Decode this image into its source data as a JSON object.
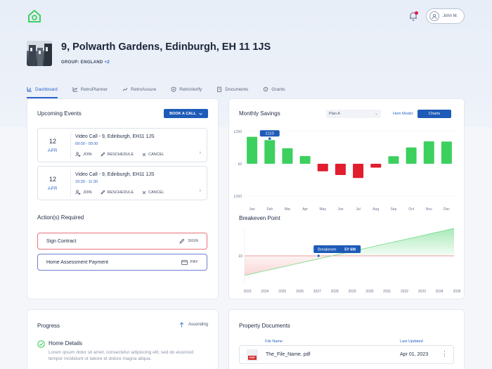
{
  "header": {
    "user_name": "John M.",
    "property_title": "9, Polwarth Gardens, Edinburgh, EH 11 1JS",
    "group_label": "GROUP: ENGLAND",
    "group_more": "+2"
  },
  "tabs": [
    {
      "label": "Dashboard",
      "icon": "chart-icon",
      "active": true
    },
    {
      "label": "RetroPlanner",
      "icon": "planner-icon"
    },
    {
      "label": "RetroAssure",
      "icon": "assure-icon"
    },
    {
      "label": "RetroVerify",
      "icon": "shield-icon"
    },
    {
      "label": "Documents",
      "icon": "document-icon"
    },
    {
      "label": "Grants",
      "icon": "grants-icon"
    }
  ],
  "events": {
    "title": "Upcoming Events",
    "book_button": "BOOK A CALL",
    "items": [
      {
        "day": "12",
        "month": "APR",
        "title": "Video Call - 9, Edinburgh, EH11 1JS",
        "time": "09:00 - 09:30",
        "join": "JOIN",
        "reschedule": "RESCHEDULE",
        "cancel": "CANCEL"
      },
      {
        "day": "12",
        "month": "APR",
        "title": "Video Call - 9, Edinburgh, EH11 1JS",
        "time": "10:30 - 11:30",
        "join": "JOIN",
        "reschedule": "RESCHEDULE",
        "cancel": "CANCEL"
      }
    ]
  },
  "actions": {
    "title": "Action(s) Required",
    "items": [
      {
        "label": "Sign Contract",
        "action": "SIGN",
        "color": "#e8727b"
      },
      {
        "label": "Home Assessment Payment",
        "action": "PAY",
        "color": "#6f7fd6"
      }
    ]
  },
  "savings": {
    "title": "Monthly Savings",
    "plan_select": "Plan A",
    "toggle_home": "Hom Model",
    "toggle_charts": "Charts",
    "tooltip": "£110"
  },
  "breakeven": {
    "title": "Breakeven Point",
    "tooltip_label": "Breakeven",
    "tooltip_value": "5Y 6M"
  },
  "chart_data": [
    {
      "type": "bar",
      "title": "Monthly Savings",
      "categories": [
        "Jan",
        "Feb",
        "Mar",
        "Apr",
        "May",
        "Jun",
        "Jul",
        "Aug",
        "Sep",
        "Oct",
        "Nov",
        "Dec"
      ],
      "values": [
        125,
        110,
        72,
        36,
        -35,
        -52,
        -66,
        -18,
        35,
        76,
        104,
        103
      ],
      "ytick_labels": [
        "£150",
        "£0",
        "£150"
      ],
      "ylim": [
        -150,
        150
      ],
      "colors": {
        "positive": "#3dd05f",
        "negative": "#e11d2e"
      },
      "highlight": {
        "category": "Feb",
        "label": "£110"
      }
    },
    {
      "type": "area",
      "title": "Breakeven Point",
      "categories": [
        "2023",
        "2024",
        "2025",
        "2026",
        "2027",
        "2028",
        "2029",
        "2030",
        "2031",
        "2032",
        "2033",
        "2034",
        "2035"
      ],
      "y_label_zero": "£0",
      "cumulative_savings": [
        -1.0,
        -0.8,
        -0.6,
        -0.4,
        -0.2,
        0.0,
        0.2,
        0.4,
        0.6,
        0.8,
        1.0,
        1.2,
        1.4
      ],
      "breakeven_label": "5Y 6M"
    }
  ],
  "progress": {
    "title": "Progress",
    "sort_label": "Ascending",
    "item_title": "Home Details",
    "item_desc": "Lorem ipsum dolor sit amet, consectetur adipiscing elit, sed do eiusmod tempor incididunt ut labore et dolore magna aliqua."
  },
  "documents": {
    "title": "Property Documents",
    "col_name": "File Name",
    "col_updated": "Last Updated",
    "rows": [
      {
        "name": "The_File_Name. pdf",
        "updated": "Apr 01, 2023",
        "type_label": "PDF"
      }
    ]
  }
}
